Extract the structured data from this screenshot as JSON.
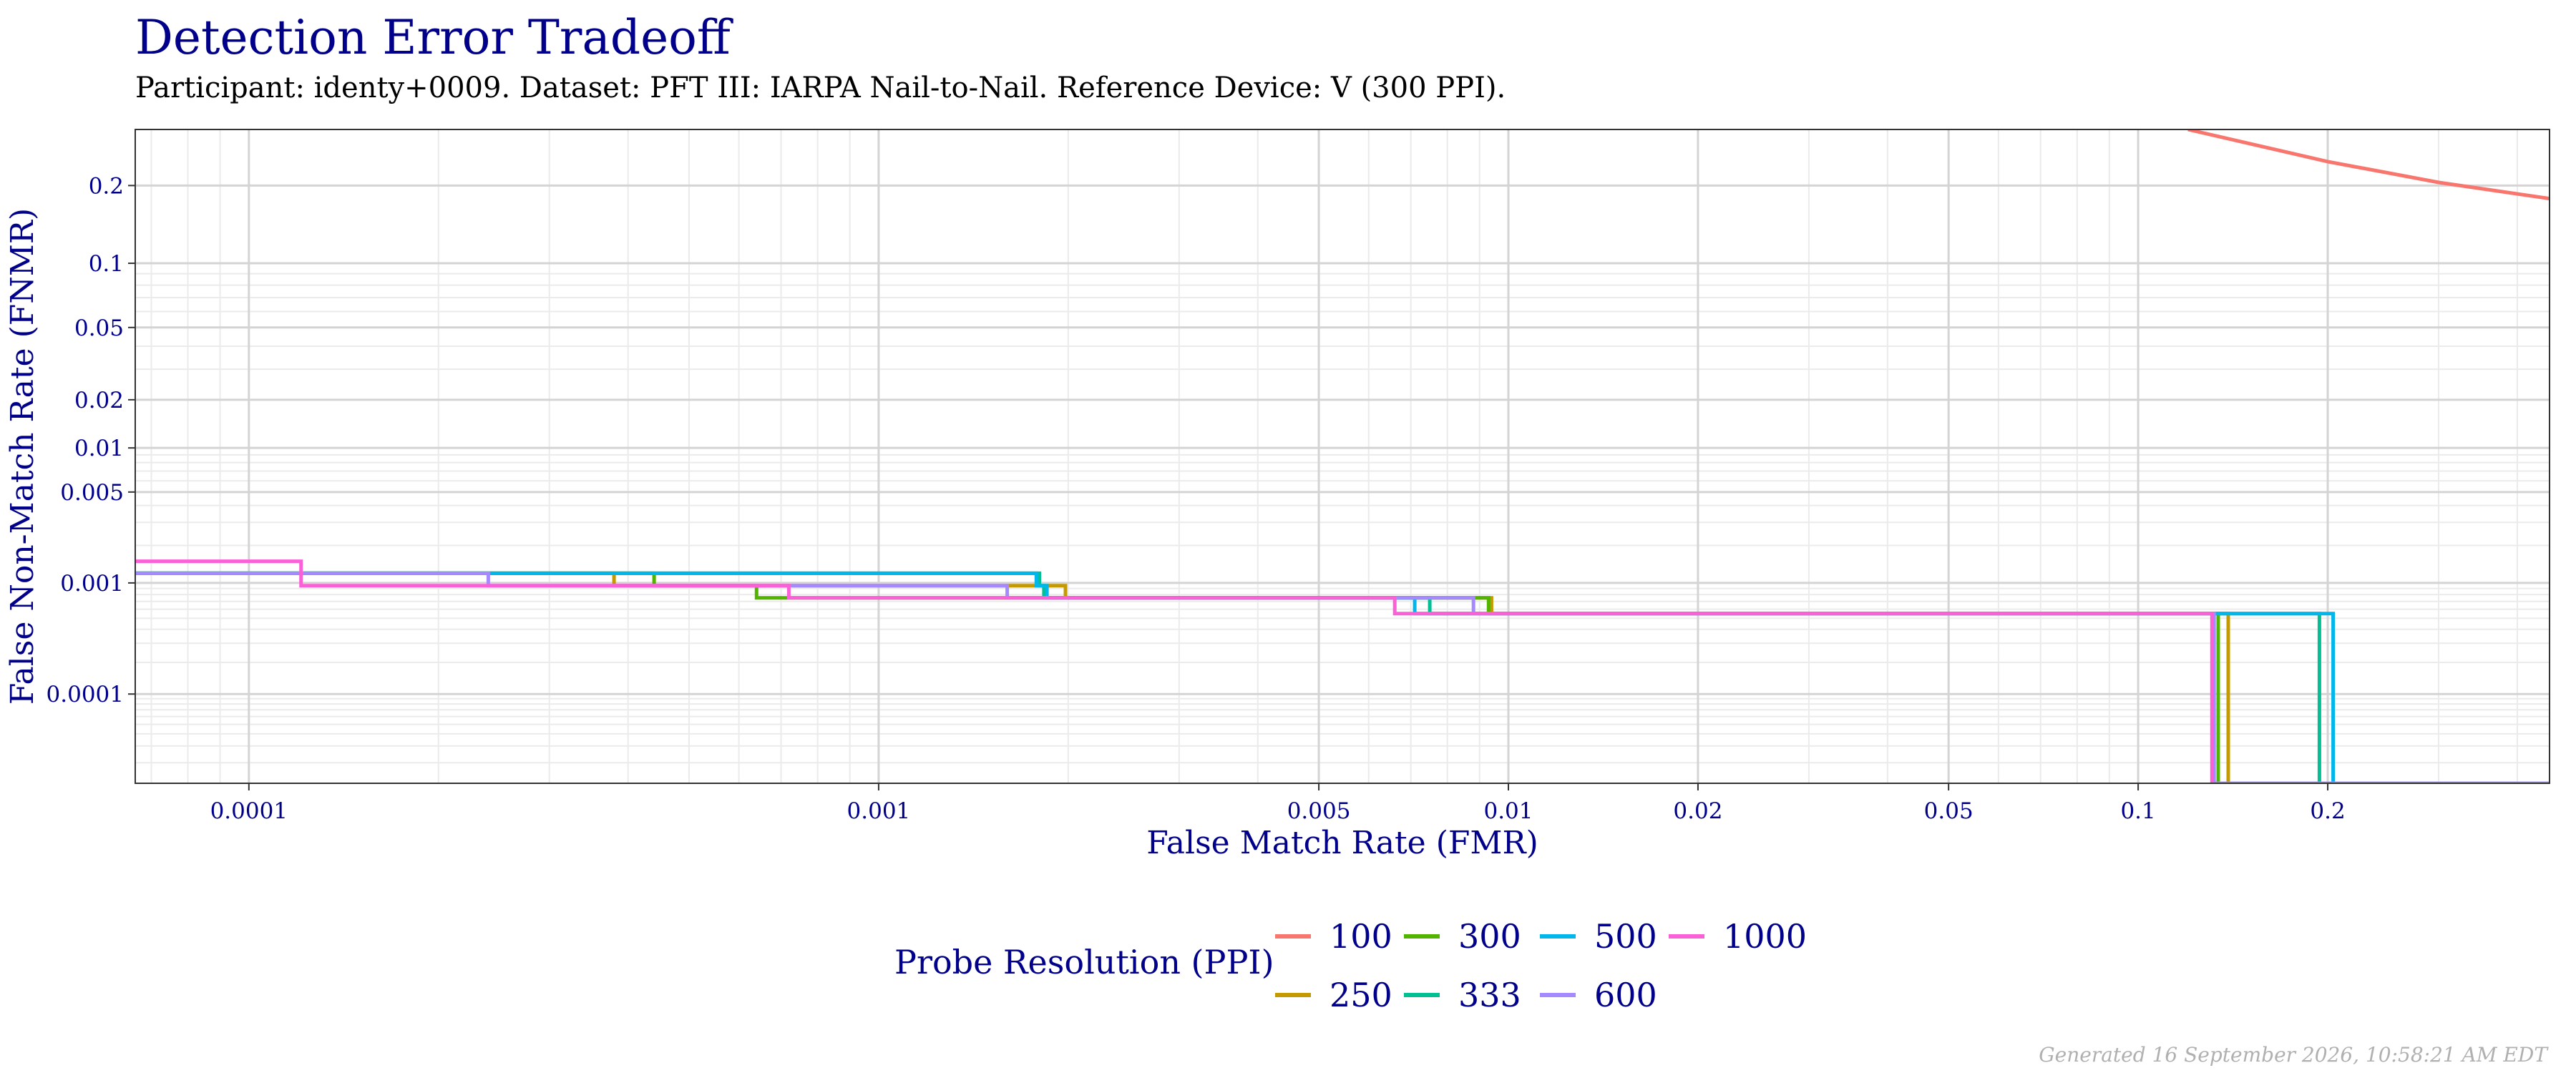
{
  "chart_data": {
    "type": "line",
    "title": "Detection Error Tradeoff",
    "subtitle": "Participant: identy+0009. Dataset: PFT III: IARPA Nail-to-Nail. Reference Device: V (300 PPI).",
    "xlabel": "False Match Rate (FMR)",
    "ylabel": "False Non-Match Rate (FNMR)",
    "x_scale": "log",
    "y_scale": "probit",
    "xlim": [
      6.6e-05,
      0.45
    ],
    "ylim": [
      1.2e-05,
      0.3
    ],
    "x_ticks": [
      {
        "value": 0.0001,
        "label": "0.0001"
      },
      {
        "value": 0.001,
        "label": "0.001"
      },
      {
        "value": 0.005,
        "label": "0.005"
      },
      {
        "value": 0.01,
        "label": "0.01"
      },
      {
        "value": 0.02,
        "label": "0.02"
      },
      {
        "value": 0.05,
        "label": "0.05"
      },
      {
        "value": 0.1,
        "label": "0.1"
      },
      {
        "value": 0.2,
        "label": "0.2"
      }
    ],
    "y_ticks": [
      {
        "value": 0.0001,
        "label": "0.0001"
      },
      {
        "value": 0.001,
        "label": "0.001"
      },
      {
        "value": 0.005,
        "label": "0.005"
      },
      {
        "value": 0.01,
        "label": "0.01"
      },
      {
        "value": 0.02,
        "label": "0.02"
      },
      {
        "value": 0.05,
        "label": "0.05"
      },
      {
        "value": 0.1,
        "label": "0.1"
      },
      {
        "value": 0.2,
        "label": "0.2"
      }
    ],
    "grid": true,
    "legend_title": "Probe Resolution (PPI)",
    "legend_position": "bottom",
    "series": [
      {
        "name": "100",
        "color": "#F8766D",
        "points": [
          [
            0.12,
            0.3
          ],
          [
            0.2,
            0.24
          ],
          [
            0.3,
            0.205
          ],
          [
            0.45,
            0.18
          ]
        ]
      },
      {
        "name": "250",
        "color": "#C49A00",
        "points": [
          [
            6.6e-05,
            0.0012
          ],
          [
            0.00038,
            0.0012
          ],
          [
            0.00038,
            0.00095
          ],
          [
            0.00198,
            0.00095
          ],
          [
            0.00198,
            0.00075
          ],
          [
            0.0094,
            0.00075
          ],
          [
            0.0094,
            0.00055
          ],
          [
            0.139,
            0.00055
          ],
          [
            0.139,
            1.2e-05
          ]
        ]
      },
      {
        "name": "300",
        "color": "#53B400",
        "points": [
          [
            6.6e-05,
            0.0012
          ],
          [
            0.00044,
            0.0012
          ],
          [
            0.00044,
            0.00095
          ],
          [
            0.00064,
            0.00095
          ],
          [
            0.00064,
            0.00075
          ],
          [
            0.0093,
            0.00075
          ],
          [
            0.0093,
            0.00055
          ],
          [
            0.134,
            0.00055
          ],
          [
            0.134,
            1.2e-05
          ]
        ]
      },
      {
        "name": "333",
        "color": "#00C094",
        "points": [
          [
            6.6e-05,
            0.0012
          ],
          [
            0.0018,
            0.0012
          ],
          [
            0.0018,
            0.00095
          ],
          [
            0.00183,
            0.00095
          ],
          [
            0.00183,
            0.00075
          ],
          [
            0.0075,
            0.00075
          ],
          [
            0.0075,
            0.00055
          ],
          [
            0.194,
            0.00055
          ],
          [
            0.194,
            1.2e-05
          ]
        ]
      },
      {
        "name": "500",
        "color": "#00B6EB",
        "points": [
          [
            6.6e-05,
            0.0012
          ],
          [
            0.00178,
            0.0012
          ],
          [
            0.00178,
            0.00095
          ],
          [
            0.00185,
            0.00095
          ],
          [
            0.00185,
            0.00075
          ],
          [
            0.0071,
            0.00075
          ],
          [
            0.0071,
            0.00055
          ],
          [
            0.204,
            0.00055
          ],
          [
            0.204,
            1.2e-05
          ]
        ]
      },
      {
        "name": "600",
        "color": "#A58AFF",
        "points": [
          [
            6.6e-05,
            0.0012
          ],
          [
            0.00024,
            0.0012
          ],
          [
            0.00024,
            0.00095
          ],
          [
            0.0016,
            0.00095
          ],
          [
            0.0016,
            0.00075
          ],
          [
            0.0088,
            0.00075
          ],
          [
            0.0088,
            0.00055
          ],
          [
            0.132,
            0.00055
          ],
          [
            0.132,
            1.2e-05
          ],
          [
            0.45,
            1.2e-05
          ]
        ]
      },
      {
        "name": "1000",
        "color": "#FB61D7",
        "points": [
          [
            6.6e-05,
            0.0015
          ],
          [
            0.000121,
            0.0015
          ],
          [
            0.000121,
            0.00095
          ],
          [
            0.00072,
            0.00095
          ],
          [
            0.00072,
            0.00075
          ],
          [
            0.0066,
            0.00075
          ],
          [
            0.0066,
            0.00055
          ],
          [
            0.131,
            0.00055
          ],
          [
            0.131,
            1.2e-05
          ]
        ]
      }
    ]
  },
  "footer": "Generated 16 September 2026, 10:58:21 AM EDT"
}
